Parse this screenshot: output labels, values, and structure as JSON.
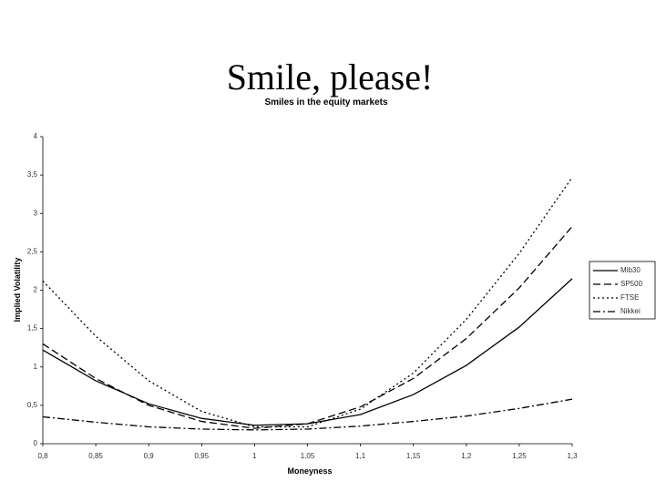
{
  "slide_title": "Smile, please!",
  "chart_data": {
    "type": "line",
    "title": "Smiles in the equity markets",
    "x_label": "Moneyness",
    "y_label": "Implied Volatility",
    "x": [
      0.8,
      0.85,
      0.9,
      0.95,
      1.0,
      1.05,
      1.1,
      1.15,
      1.2,
      1.25,
      1.3
    ],
    "series": [
      {
        "name": "Mib30",
        "color": "#000000",
        "dash": "solid",
        "values": [
          1.22,
          0.82,
          0.52,
          0.33,
          0.24,
          0.26,
          0.38,
          0.64,
          1.02,
          1.52,
          2.15
        ]
      },
      {
        "name": "SP500",
        "color": "#000000",
        "dash": "dashed",
        "values": [
          1.3,
          0.85,
          0.5,
          0.29,
          0.2,
          0.26,
          0.48,
          0.85,
          1.37,
          2.03,
          2.83
        ]
      },
      {
        "name": "FTSE",
        "color": "#000000",
        "dash": "dotted",
        "values": [
          2.12,
          1.4,
          0.82,
          0.42,
          0.22,
          0.22,
          0.45,
          0.92,
          1.62,
          2.48,
          3.47
        ]
      },
      {
        "name": "Nikkei",
        "color": "#000000",
        "dash": "dashdot",
        "values": [
          0.35,
          0.28,
          0.22,
          0.19,
          0.18,
          0.19,
          0.23,
          0.29,
          0.36,
          0.46,
          0.58
        ]
      }
    ],
    "xlim": [
      0.8,
      1.3
    ],
    "xticks": [
      {
        "value": 0.8,
        "label": "0,8"
      },
      {
        "value": 0.85,
        "label": "0,85"
      },
      {
        "value": 0.9,
        "label": "0,9"
      },
      {
        "value": 0.95,
        "label": "0,95"
      },
      1,
      {
        "value": 1.05,
        "label": "1,05"
      },
      {
        "value": 1.1,
        "label": "1,1"
      },
      {
        "value": 1.15,
        "label": "1,15"
      },
      {
        "value": 1.2,
        "label": "1,2"
      },
      {
        "value": 1.25,
        "label": "1,25"
      },
      {
        "value": 1.3,
        "label": "1,3"
      }
    ],
    "ylim": [
      0,
      4
    ],
    "yticks": [
      0,
      {
        "value": 0.5,
        "label": "0,5"
      },
      1,
      {
        "value": 1.5,
        "label": "1,5"
      },
      2,
      {
        "value": 2.5,
        "label": "2,5"
      },
      3,
      {
        "value": 3.5,
        "label": "3,5"
      },
      4
    ],
    "grid": false,
    "legend": "right"
  }
}
